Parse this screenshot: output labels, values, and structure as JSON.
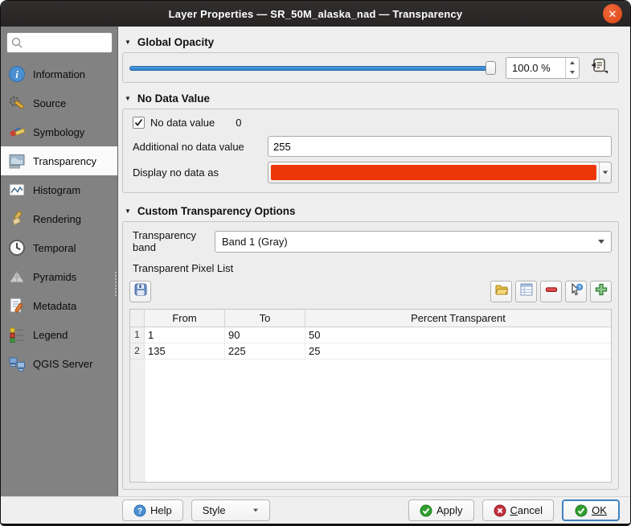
{
  "window": {
    "title": "Layer Properties — SR_50M_alaska_nad — Transparency"
  },
  "sidebar": {
    "search": {
      "placeholder": ""
    },
    "items": [
      {
        "id": "information",
        "label": "Information",
        "icon": "information-icon",
        "selected": false
      },
      {
        "id": "source",
        "label": "Source",
        "icon": "source-icon",
        "selected": false
      },
      {
        "id": "symbology",
        "label": "Symbology",
        "icon": "symbology-icon",
        "selected": false
      },
      {
        "id": "transparency",
        "label": "Transparency",
        "icon": "transparency-icon",
        "selected": true
      },
      {
        "id": "histogram",
        "label": "Histogram",
        "icon": "histogram-icon",
        "selected": false
      },
      {
        "id": "rendering",
        "label": "Rendering",
        "icon": "rendering-icon",
        "selected": false
      },
      {
        "id": "temporal",
        "label": "Temporal",
        "icon": "temporal-icon",
        "selected": false
      },
      {
        "id": "pyramids",
        "label": "Pyramids",
        "icon": "pyramids-icon",
        "selected": false
      },
      {
        "id": "metadata",
        "label": "Metadata",
        "icon": "metadata-icon",
        "selected": false
      },
      {
        "id": "legend",
        "label": "Legend",
        "icon": "legend-icon",
        "selected": false
      },
      {
        "id": "qgis-server",
        "label": "QGIS Server",
        "icon": "qgis-server-icon",
        "selected": false
      }
    ]
  },
  "sections": {
    "global_opacity": {
      "title": "Global Opacity",
      "value": "100.0 %",
      "slider_percent": 100
    },
    "no_data": {
      "title": "No Data Value",
      "checkbox_label": "No data value",
      "checkbox_checked": true,
      "checkbox_value": "0",
      "additional_label": "Additional no data value",
      "additional_value": "255",
      "display_label": "Display no data as",
      "display_color": "#ee3709"
    },
    "custom": {
      "title": "Custom Transparency Options",
      "band_label": "Transparency band",
      "band_value": "Band 1 (Gray)",
      "pixel_list_label": "Transparent Pixel List",
      "toolbar_icons": [
        "save-icon",
        "open-folder-icon",
        "default-values-icon",
        "remove-row-icon",
        "pick-from-map-icon",
        "add-row-icon"
      ],
      "table": {
        "headers": [
          "From",
          "To",
          "Percent Transparent"
        ],
        "rows": [
          {
            "num": "1",
            "from": "1",
            "to": "90",
            "percent": "50"
          },
          {
            "num": "2",
            "from": "135",
            "to": "225",
            "percent": "25"
          }
        ]
      }
    }
  },
  "footer": {
    "help": "Help",
    "style": "Style",
    "apply": "Apply",
    "cancel_accel": "C",
    "cancel_rest": "ancel",
    "ok": "OK"
  },
  "colors": {
    "accent_blue": "#3a87cd",
    "close_button": "#dd4814",
    "titlebar": "#2b2828",
    "sidebar_bg": "#828282"
  }
}
